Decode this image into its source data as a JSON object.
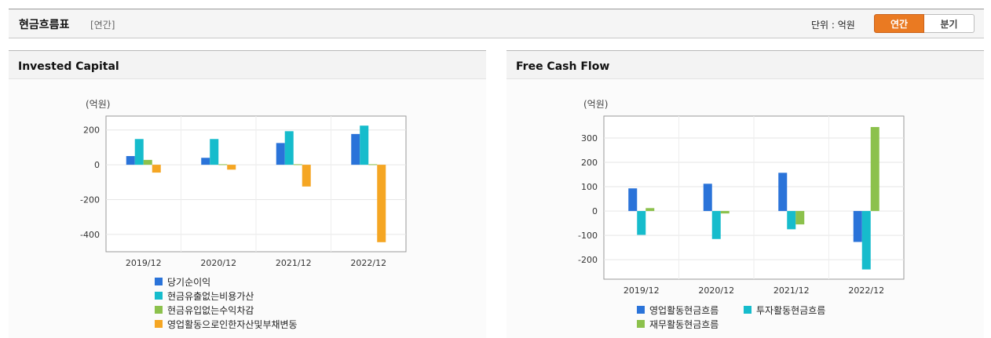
{
  "header": {
    "title": "현금흐름표",
    "subtitle": "[연간]",
    "unit_label": "단위 : 억원",
    "toggle_annual": "연간",
    "toggle_quarter": "분기"
  },
  "colors": {
    "blue": "#2a73d9",
    "teal": "#16bccc",
    "green": "#8cc14c",
    "orange": "#f5a623",
    "accent": "#ea7a22"
  },
  "chart_data": [
    {
      "type": "bar",
      "title": "Invested Capital",
      "unit": "(억원)",
      "categories": [
        "2019/12",
        "2020/12",
        "2021/12",
        "2022/12"
      ],
      "ylim": [
        -500,
        280
      ],
      "yticks": [
        200,
        0,
        -200,
        -400
      ],
      "grid": true,
      "legend_position": "bottom",
      "series": [
        {
          "name": "당기순이익",
          "color": "#2a73d9",
          "values": [
            50,
            40,
            125,
            177
          ]
        },
        {
          "name": "현금유출없는비용가산",
          "color": "#16bccc",
          "values": [
            148,
            148,
            193,
            225
          ]
        },
        {
          "name": "현금유입없는수익차감",
          "color": "#8cc14c",
          "values": [
            28,
            3,
            3,
            3
          ]
        },
        {
          "name": "영업활동으로인한자산및부채변동",
          "color": "#f5a623",
          "values": [
            -45,
            -28,
            -125,
            -445
          ]
        }
      ]
    },
    {
      "type": "bar",
      "title": "Free Cash Flow",
      "unit": "(억원)",
      "categories": [
        "2019/12",
        "2020/12",
        "2021/12",
        "2022/12"
      ],
      "ylim": [
        -280,
        390
      ],
      "yticks": [
        300,
        200,
        100,
        0,
        -100,
        -200
      ],
      "grid": true,
      "legend_position": "bottom",
      "series": [
        {
          "name": "영업활동현금흐름",
          "color": "#2a73d9",
          "values": [
            93,
            112,
            157,
            -127
          ]
        },
        {
          "name": "투자활동현금흐름",
          "color": "#16bccc",
          "values": [
            -98,
            -115,
            -75,
            -240
          ]
        },
        {
          "name": "재무활동현금흐름",
          "color": "#8cc14c",
          "values": [
            12,
            -10,
            -55,
            345
          ]
        }
      ]
    }
  ]
}
